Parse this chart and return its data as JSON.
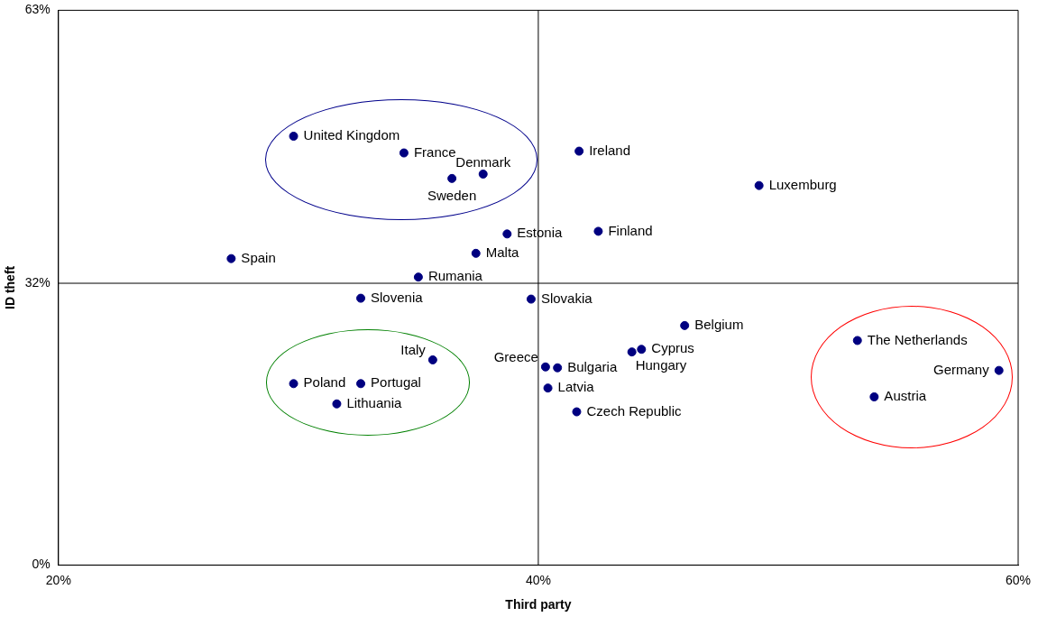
{
  "chart_data": {
    "type": "scatter",
    "xlabel": "Third party",
    "ylabel": "ID theft",
    "xlim": [
      20,
      60
    ],
    "xticks": [
      {
        "value": 20,
        "label": "20%"
      },
      {
        "value": 40,
        "label": "40%"
      },
      {
        "value": 60,
        "label": "60%"
      }
    ],
    "ylim": [
      0,
      63
    ],
    "yticks": [
      {
        "value": 0,
        "label": "0%"
      },
      {
        "value": 32,
        "label": "32%"
      },
      {
        "value": 63,
        "label": "63%"
      }
    ],
    "grid": false,
    "legend": false,
    "marker": "circle",
    "ref_lines": [
      {
        "axis": "x",
        "value": 40,
        "color": "#000000"
      },
      {
        "axis": "y",
        "value": 32,
        "color": "#000000"
      }
    ],
    "series": [
      {
        "color": "#000080",
        "x": [
          29.8,
          34.4,
          37.7,
          36.4,
          41.7,
          49.2,
          38.7,
          42.5,
          27.2,
          37.4,
          35.0,
          32.6,
          39.7,
          46.1,
          44.3,
          43.9,
          35.6,
          40.3,
          40.8,
          40.4,
          41.6,
          29.8,
          32.6,
          31.6,
          53.3,
          59.2,
          54.0
        ],
        "values": [
          48.7,
          46.8,
          44.4,
          43.9,
          47.0,
          43.1,
          37.6,
          37.9,
          34.8,
          35.4,
          32.7,
          30.3,
          30.2,
          27.2,
          24.5,
          24.2,
          23.3,
          22.5,
          22.4,
          20.1,
          17.4,
          20.6,
          20.6,
          18.3,
          25.5,
          22.1,
          19.1
        ]
      }
    ],
    "annotations": [
      {
        "text": "United Kingdom",
        "x": 29.8,
        "y": 48.7
      },
      {
        "text": "France",
        "x": 34.4,
        "y": 46.8
      },
      {
        "text": "Denmark",
        "x": 37.7,
        "y": 44.4
      },
      {
        "text": "Sweden",
        "x": 36.4,
        "y": 43.9
      },
      {
        "text": "Ireland",
        "x": 41.7,
        "y": 47.0
      },
      {
        "text": "Luxemburg",
        "x": 49.2,
        "y": 43.1
      },
      {
        "text": "Estonia",
        "x": 38.7,
        "y": 37.6
      },
      {
        "text": "Finland",
        "x": 42.5,
        "y": 37.9
      },
      {
        "text": "Spain",
        "x": 27.2,
        "y": 34.8
      },
      {
        "text": "Malta",
        "x": 37.4,
        "y": 35.4
      },
      {
        "text": "Rumania",
        "x": 35.0,
        "y": 32.7
      },
      {
        "text": "Slovenia",
        "x": 32.6,
        "y": 30.3
      },
      {
        "text": "Slovakia",
        "x": 39.7,
        "y": 30.2
      },
      {
        "text": "Belgium",
        "x": 46.1,
        "y": 27.2
      },
      {
        "text": "Cyprus",
        "x": 44.3,
        "y": 24.5
      },
      {
        "text": "Hungary",
        "x": 43.9,
        "y": 24.2
      },
      {
        "text": "Italy",
        "x": 35.6,
        "y": 23.3
      },
      {
        "text": "Greece",
        "x": 40.3,
        "y": 22.5
      },
      {
        "text": "Bulgaria",
        "x": 40.8,
        "y": 22.4
      },
      {
        "text": "Latvia",
        "x": 40.4,
        "y": 20.1
      },
      {
        "text": "Czech Republic",
        "x": 41.6,
        "y": 17.4
      },
      {
        "text": "Poland",
        "x": 29.8,
        "y": 20.6
      },
      {
        "text": "Portugal",
        "x": 32.6,
        "y": 20.6
      },
      {
        "text": "Lithuania",
        "x": 31.6,
        "y": 18.3
      },
      {
        "text": "The Netherlands",
        "x": 53.3,
        "y": 25.5
      },
      {
        "text": "Germany",
        "x": 59.2,
        "y": 22.1
      },
      {
        "text": "Austria",
        "x": 54.0,
        "y": 19.1
      }
    ]
  }
}
